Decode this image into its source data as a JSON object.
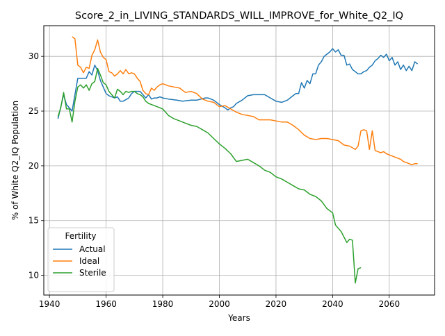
{
  "chart_data": {
    "type": "line",
    "title": "Score_2_in_LIVING_STANDARDS_WILL_IMPROVE_for_White_Q2_IQ",
    "xlabel": "Years",
    "ylabel": "% of White Q2_IQ Population",
    "xlim": [
      1938,
      2076
    ],
    "ylim": [
      8.2,
      32.8
    ],
    "x_ticks": [
      1940,
      1960,
      1980,
      2000,
      2020,
      2040,
      2060
    ],
    "y_ticks": [
      10,
      15,
      20,
      25,
      30
    ],
    "grid": true,
    "legend": {
      "title": "Fertility",
      "placement": "lower-left"
    },
    "series": [
      {
        "name": "Actual",
        "color": "#1f77b4",
        "x": [
          1943,
          1945,
          1946,
          1948,
          1950,
          1953,
          1954,
          1955,
          1956,
          1957,
          1958,
          1960,
          1961,
          1963,
          1964,
          1965,
          1966,
          1968,
          1969,
          1970,
          1972,
          1974,
          1975,
          1976,
          1977,
          1978,
          1979,
          1980,
          1982,
          1985,
          1987,
          1990,
          1992,
          1995,
          1996,
          1997,
          1998,
          2000,
          2002,
          2003,
          2004,
          2005,
          2006,
          2008,
          2010,
          2012,
          2014,
          2016,
          2018,
          2020,
          2022,
          2024,
          2026,
          2027,
          2028,
          2029,
          2030,
          2031,
          2032,
          2033,
          2034,
          2035,
          2036,
          2037,
          2038,
          2039,
          2040,
          2041,
          2042,
          2043,
          2044,
          2045,
          2046,
          2047,
          2048,
          2049,
          2050,
          2051,
          2052,
          2053,
          2054,
          2055,
          2056,
          2057,
          2058,
          2059,
          2060,
          2061,
          2062,
          2063,
          2064,
          2065,
          2066,
          2067,
          2068,
          2069,
          2070
        ],
        "y": [
          24.3,
          26.5,
          25.6,
          25.0,
          28.0,
          28.0,
          28.6,
          28.3,
          29.2,
          28.7,
          27.8,
          26.6,
          26.4,
          26.2,
          26.3,
          25.9,
          25.9,
          26.2,
          26.6,
          26.8,
          26.8,
          26.2,
          26.5,
          26.1,
          26.2,
          26.2,
          26.3,
          26.2,
          26.1,
          26.0,
          25.9,
          26.0,
          26.0,
          26.2,
          26.2,
          26.1,
          26.0,
          25.6,
          25.3,
          25.1,
          25.3,
          25.4,
          25.7,
          26.0,
          26.4,
          26.5,
          26.5,
          26.5,
          26.2,
          25.9,
          25.8,
          26.0,
          26.4,
          26.6,
          26.6,
          27.6,
          27.1,
          27.8,
          27.5,
          28.4,
          28.4,
          29.2,
          29.5,
          30.0,
          30.2,
          30.4,
          30.7,
          30.4,
          30.6,
          30.1,
          30.1,
          29.2,
          29.3,
          28.8,
          28.6,
          28.4,
          28.4,
          28.6,
          28.7,
          29.0,
          29.2,
          29.6,
          29.8,
          30.1,
          29.9,
          30.2,
          29.6,
          29.9,
          29.2,
          29.5,
          28.8,
          29.2,
          28.7,
          29.1,
          28.7,
          29.5,
          29.3
        ]
      },
      {
        "name": "Ideal",
        "color": "#ff7f0e",
        "x": [
          1948,
          1949,
          1950,
          1951,
          1952,
          1953,
          1954,
          1955,
          1956,
          1957,
          1958,
          1959,
          1960,
          1961,
          1962,
          1963,
          1964,
          1965,
          1966,
          1967,
          1968,
          1969,
          1970,
          1971,
          1972,
          1973,
          1974,
          1975,
          1976,
          1977,
          1978,
          1979,
          1980,
          1982,
          1984,
          1986,
          1988,
          1990,
          1992,
          1994,
          1996,
          1998,
          2000,
          2002,
          2004,
          2006,
          2008,
          2010,
          2012,
          2014,
          2016,
          2018,
          2020,
          2022,
          2024,
          2026,
          2028,
          2030,
          2032,
          2034,
          2036,
          2038,
          2040,
          2042,
          2044,
          2046,
          2048,
          2049,
          2050,
          2051,
          2052,
          2053,
          2054,
          2055,
          2056,
          2057,
          2058,
          2059,
          2060,
          2061,
          2062,
          2063,
          2064,
          2065,
          2066,
          2067,
          2068,
          2069,
          2070
        ],
        "y": [
          31.8,
          31.6,
          29.2,
          29.0,
          28.5,
          29.0,
          28.9,
          30.1,
          30.6,
          31.5,
          30.4,
          29.9,
          29.7,
          28.6,
          28.5,
          28.2,
          28.4,
          28.7,
          28.4,
          28.8,
          28.4,
          28.5,
          28.4,
          28.0,
          27.7,
          26.9,
          26.6,
          26.5,
          27.1,
          26.9,
          27.2,
          27.4,
          27.5,
          27.3,
          27.2,
          27.1,
          26.7,
          26.8,
          26.6,
          26.1,
          25.9,
          25.8,
          25.4,
          25.5,
          25.2,
          24.9,
          24.7,
          24.6,
          24.5,
          24.2,
          24.2,
          24.2,
          24.1,
          24.0,
          24.0,
          23.7,
          23.3,
          22.8,
          22.5,
          22.4,
          22.5,
          22.5,
          22.4,
          22.3,
          21.9,
          21.8,
          21.5,
          21.8,
          23.2,
          23.3,
          23.2,
          21.5,
          23.2,
          21.4,
          21.3,
          21.2,
          21.3,
          21.1,
          21.0,
          20.9,
          20.8,
          20.7,
          20.6,
          20.4,
          20.3,
          20.2,
          20.1,
          20.2,
          20.2
        ]
      },
      {
        "name": "Sterile",
        "color": "#2ca02c",
        "x": [
          1943,
          1944,
          1945,
          1946,
          1947,
          1948,
          1949,
          1950,
          1951,
          1952,
          1953,
          1954,
          1955,
          1956,
          1957,
          1958,
          1959,
          1960,
          1961,
          1962,
          1963,
          1964,
          1965,
          1966,
          1967,
          1968,
          1969,
          1970,
          1971,
          1972,
          1973,
          1974,
          1975,
          1976,
          1977,
          1978,
          1979,
          1980,
          1982,
          1984,
          1986,
          1988,
          1990,
          1992,
          1994,
          1996,
          1998,
          2000,
          2002,
          2004,
          2006,
          2008,
          2010,
          2012,
          2014,
          2016,
          2018,
          2020,
          2022,
          2024,
          2026,
          2028,
          2030,
          2032,
          2034,
          2036,
          2038,
          2040,
          2041,
          2042,
          2043,
          2044,
          2045,
          2046,
          2047,
          2048,
          2049,
          2050
        ],
        "y": [
          24.5,
          25.3,
          26.7,
          25.2,
          25.2,
          24.0,
          25.9,
          27.2,
          27.4,
          27.1,
          27.4,
          26.9,
          27.5,
          27.7,
          28.9,
          28.3,
          27.6,
          27.4,
          26.8,
          26.5,
          26.2,
          27.0,
          26.8,
          26.5,
          26.8,
          26.7,
          26.8,
          26.8,
          26.6,
          26.5,
          26.3,
          25.9,
          25.7,
          25.6,
          25.5,
          25.4,
          25.3,
          25.2,
          24.6,
          24.3,
          24.1,
          23.9,
          23.7,
          23.6,
          23.3,
          23.0,
          22.5,
          22.0,
          21.6,
          21.1,
          20.4,
          20.5,
          20.6,
          20.3,
          20.0,
          19.6,
          19.4,
          19.0,
          18.8,
          18.5,
          18.2,
          17.9,
          17.8,
          17.4,
          17.2,
          16.8,
          16.1,
          15.7,
          14.6,
          14.3,
          14.0,
          13.5,
          13.0,
          13.3,
          13.2,
          9.3,
          10.6,
          10.7
        ]
      }
    ]
  }
}
